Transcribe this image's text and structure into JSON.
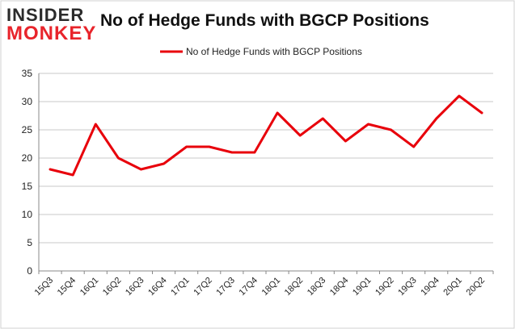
{
  "logo": {
    "line1": "INSIDER",
    "line2": "MONKEY"
  },
  "colors": {
    "series": "#e8000b",
    "grid": "#c8c8c8",
    "axis": "#888888",
    "text": "#111111",
    "logo_accent": "#e8242b"
  },
  "chart_data": {
    "type": "line",
    "title": "No of Hedge Funds with BGCP Positions",
    "xlabel": "",
    "ylabel": "",
    "ylim": [
      0,
      35
    ],
    "yticks": [
      0,
      5,
      10,
      15,
      20,
      25,
      30,
      35
    ],
    "grid": true,
    "legend_position": "top-center",
    "categories": [
      "15Q3",
      "15Q4",
      "16Q1",
      "16Q2",
      "16Q3",
      "16Q4",
      "17Q1",
      "17Q2",
      "17Q3",
      "17Q4",
      "18Q1",
      "18Q2",
      "18Q3",
      "18Q4",
      "19Q1",
      "19Q2",
      "19Q3",
      "19Q4",
      "20Q1",
      "20Q2"
    ],
    "series": [
      {
        "name": "No of Hedge Funds with BGCP Positions",
        "values": [
          18,
          17,
          26,
          20,
          18,
          19,
          22,
          22,
          21,
          21,
          28,
          24,
          27,
          23,
          26,
          25,
          22,
          27,
          31,
          28
        ]
      }
    ]
  }
}
